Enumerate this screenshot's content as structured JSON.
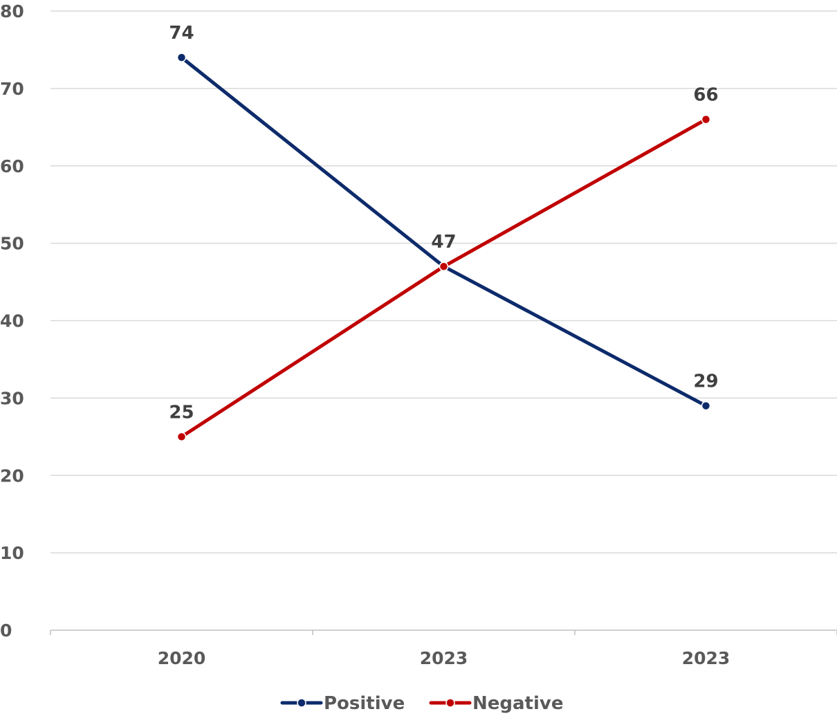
{
  "chart_data": {
    "type": "line",
    "categories": [
      "2020",
      "2023",
      "2023"
    ],
    "series": [
      {
        "name": "Positive",
        "values": [
          74,
          47,
          29
        ],
        "color": "#0d2b6b"
      },
      {
        "name": "Negative",
        "values": [
          25,
          47,
          66
        ],
        "color": "#c00000"
      }
    ],
    "ylim": [
      0,
      80
    ],
    "yticks": [
      0,
      10,
      20,
      30,
      40,
      50,
      60,
      70,
      80
    ],
    "grid": true,
    "legend": "bottom",
    "data_labels": true
  }
}
